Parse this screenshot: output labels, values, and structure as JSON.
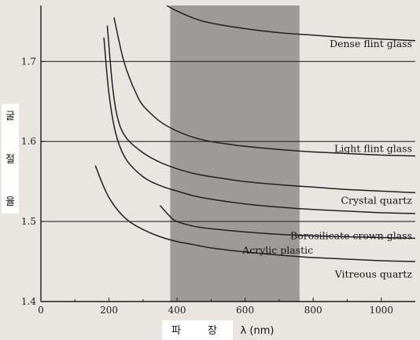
{
  "chart_data": {
    "type": "line",
    "title": "",
    "xlabel": "파 장 λ (nm)",
    "xlabel_parts": [
      "파",
      "장",
      "λ (nm)"
    ],
    "ylabel": "굴절율",
    "ylabel_chars": [
      "굴",
      "절",
      "율"
    ],
    "xlim": [
      0,
      1100
    ],
    "ylim": [
      1.4,
      1.77
    ],
    "x_ticks": [
      0,
      200,
      400,
      600,
      800,
      1000
    ],
    "y_ticks": [
      1.4,
      1.5,
      1.6,
      1.7
    ],
    "y_tick_labels": [
      "1.4",
      "1.5",
      "1.6",
      "1.7"
    ],
    "grid": "horizontal",
    "visible_band_nm": [
      380,
      760
    ],
    "series": [
      {
        "name": "Dense flint glass",
        "x": [
          370,
          400,
          450,
          500,
          600,
          700,
          800,
          900,
          1000,
          1100
        ],
        "y": [
          1.77,
          1.763,
          1.754,
          1.748,
          1.741,
          1.736,
          1.733,
          1.73,
          1.728,
          1.726
        ]
      },
      {
        "name": "Light flint glass",
        "x": [
          215,
          240,
          260,
          280,
          300,
          350,
          400,
          450,
          500,
          600,
          700,
          800,
          900,
          1000,
          1100
        ],
        "y": [
          1.755,
          1.706,
          1.68,
          1.66,
          1.645,
          1.625,
          1.613,
          1.605,
          1.6,
          1.594,
          1.59,
          1.587,
          1.585,
          1.583,
          1.582
        ]
      },
      {
        "name": "Crystal quartz",
        "x": [
          195,
          210,
          225,
          250,
          300,
          350,
          400,
          450,
          500,
          600,
          700,
          800,
          900,
          1000,
          1100
        ],
        "y": [
          1.745,
          1.671,
          1.63,
          1.605,
          1.586,
          1.574,
          1.566,
          1.56,
          1.556,
          1.55,
          1.546,
          1.543,
          1.54,
          1.538,
          1.536
        ]
      },
      {
        "name": "Borosilicate crown glass",
        "x": [
          185,
          200,
          220,
          250,
          300,
          350,
          400,
          450,
          500,
          600,
          700,
          800,
          900,
          1000,
          1100
        ],
        "y": [
          1.73,
          1.66,
          1.61,
          1.578,
          1.556,
          1.545,
          1.538,
          1.532,
          1.528,
          1.522,
          1.518,
          1.515,
          1.513,
          1.511,
          1.51
        ]
      },
      {
        "name": "Acrylic plastic",
        "x": [
          350,
          380,
          400,
          450,
          500,
          600,
          700,
          800,
          900,
          1000,
          1100
        ],
        "y": [
          1.52,
          1.506,
          1.5,
          1.494,
          1.491,
          1.487,
          1.484,
          1.482,
          1.481,
          1.48,
          1.479
        ]
      },
      {
        "name": "Vitreous quartz",
        "x": [
          160,
          180,
          200,
          230,
          260,
          300,
          350,
          400,
          450,
          500,
          600,
          700,
          800,
          900,
          1000,
          1100
        ],
        "y": [
          1.57,
          1.548,
          1.53,
          1.512,
          1.5,
          1.49,
          1.481,
          1.475,
          1.471,
          1.467,
          1.462,
          1.458,
          1.455,
          1.453,
          1.451,
          1.45
        ]
      }
    ]
  }
}
